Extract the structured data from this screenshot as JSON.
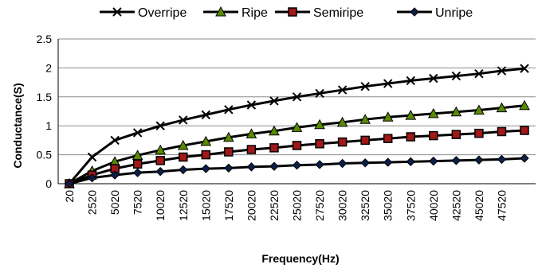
{
  "chart_data": {
    "type": "line",
    "title": "",
    "xlabel": "Frequency(Hz)",
    "ylabel": "Conductance(S)",
    "ylim": [
      0,
      2.5
    ],
    "yticks": [
      "0",
      "0.5",
      "1",
      "1.5",
      "2",
      "2.5"
    ],
    "x": [
      20,
      2520,
      5020,
      7520,
      10020,
      12520,
      15020,
      17520,
      20020,
      22520,
      25020,
      27520,
      30020,
      32520,
      35020,
      37520,
      40020,
      42520,
      45020,
      47520,
      50020
    ],
    "xtick_labels": [
      "20",
      "2520",
      "5020",
      "7520",
      "10020",
      "12520",
      "15020",
      "17520",
      "20020",
      "22520",
      "25020",
      "27520",
      "30020",
      "32520",
      "35020",
      "37520",
      "40020",
      "42520",
      "45020",
      "47520"
    ],
    "legend_position": "top",
    "grid": "horizontal",
    "series": [
      {
        "name": "Overripe",
        "marker": "x",
        "color": "#000000",
        "marker_fill": "#000000",
        "values": [
          0.0,
          0.46,
          0.75,
          0.88,
          1.0,
          1.1,
          1.19,
          1.28,
          1.36,
          1.43,
          1.5,
          1.56,
          1.62,
          1.68,
          1.73,
          1.78,
          1.82,
          1.86,
          1.9,
          1.95,
          1.99
        ]
      },
      {
        "name": "Ripe",
        "marker": "triangle",
        "color": "#000000",
        "marker_fill": "#5a8a00",
        "values": [
          0.0,
          0.22,
          0.38,
          0.49,
          0.58,
          0.66,
          0.73,
          0.8,
          0.86,
          0.91,
          0.97,
          1.02,
          1.06,
          1.11,
          1.15,
          1.18,
          1.21,
          1.24,
          1.27,
          1.31,
          1.35
        ]
      },
      {
        "name": "Semiripe",
        "marker": "square",
        "color": "#000000",
        "marker_fill": "#a01818",
        "values": [
          0.0,
          0.15,
          0.26,
          0.34,
          0.4,
          0.46,
          0.5,
          0.55,
          0.59,
          0.62,
          0.66,
          0.69,
          0.72,
          0.75,
          0.78,
          0.81,
          0.83,
          0.85,
          0.87,
          0.9,
          0.92
        ]
      },
      {
        "name": "Unripe",
        "marker": "diamond",
        "color": "#000000",
        "marker_fill": "#0a1f4a",
        "values": [
          0.0,
          0.1,
          0.15,
          0.19,
          0.21,
          0.24,
          0.26,
          0.27,
          0.29,
          0.3,
          0.32,
          0.33,
          0.35,
          0.36,
          0.37,
          0.38,
          0.39,
          0.4,
          0.41,
          0.42,
          0.44
        ]
      }
    ]
  }
}
